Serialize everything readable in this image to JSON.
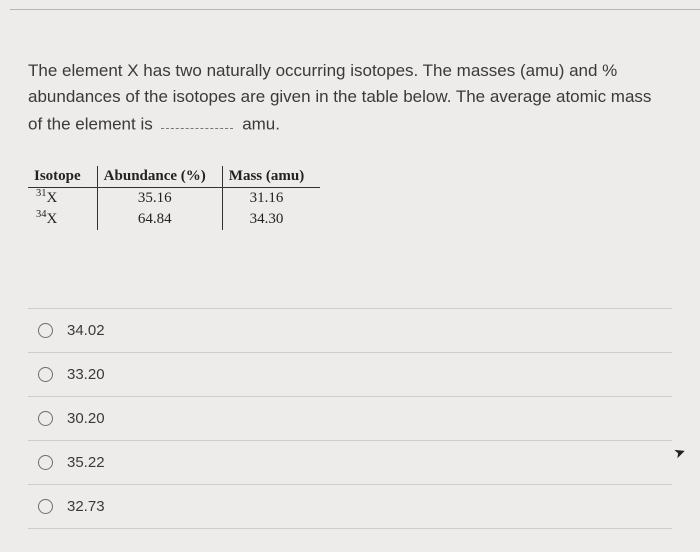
{
  "question": {
    "line1": "The element X has two naturally occurring isotopes. The masses (amu) and %",
    "line2": "abundances of the isotopes are given in the table below. The average atomic mass",
    "line3_pre": "of the element is ",
    "line3_post": " amu."
  },
  "table": {
    "headers": {
      "c1": "Isotope",
      "c2": "Abundance (%)",
      "c3": "Mass (amu)"
    },
    "rows": [
      {
        "sup": "31",
        "el": "X",
        "abund": "35.16",
        "mass": "31.16"
      },
      {
        "sup": "34",
        "el": "X",
        "abund": "64.84",
        "mass": "34.30"
      }
    ]
  },
  "options": [
    {
      "label": "34.02"
    },
    {
      "label": "33.20"
    },
    {
      "label": "30.20"
    },
    {
      "label": "35.22"
    },
    {
      "label": "32.73"
    }
  ],
  "colors": {
    "background": "#edecea",
    "text": "#3a3a3a",
    "divider": "#cfcdca",
    "radio_border": "#6e6e6e",
    "table_border": "#333333"
  }
}
